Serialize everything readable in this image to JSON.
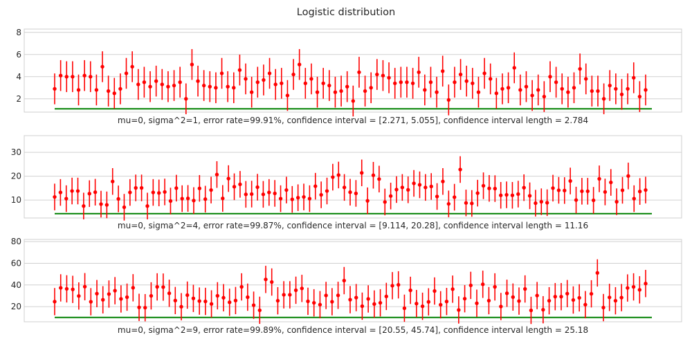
{
  "colors": {
    "errorbar": "#ff0000",
    "line": "#008000",
    "grid": "#d0d0d0",
    "frame": "#cfcfcf"
  },
  "chart_data": {
    "title": "Logistic distribution",
    "grid": true,
    "panels": [
      {
        "type": "scatter",
        "xlabel": "mu=0, sigma^2=1, error rate=99.91%, confidence interval = [2.271, 5.055], confidence interval length = 2.784",
        "ylim": [
          0.8,
          8.3
        ],
        "yticks": [
          2,
          4,
          6,
          8
        ],
        "true_mean": 1.1,
        "ci_half_width": 1.392,
        "points": [
          2.9,
          4.1,
          4.0,
          4.0,
          2.8,
          4.1,
          4.0,
          2.8,
          4.9,
          2.7,
          2.5,
          2.9,
          4.3,
          4.9,
          3.3,
          3.5,
          3.1,
          3.6,
          3.3,
          3.1,
          3.2,
          3.5,
          2.0,
          5.1,
          3.6,
          3.2,
          3.1,
          3.0,
          4.3,
          3.1,
          3.0,
          4.6,
          3.8,
          2.6,
          3.5,
          3.7,
          4.3,
          3.3,
          3.4,
          2.3,
          4.2,
          5.1,
          3.4,
          3.8,
          2.6,
          3.4,
          3.2,
          2.6,
          2.7,
          3.1,
          1.8,
          4.4,
          2.7,
          3.0,
          4.2,
          4.1,
          3.9,
          3.4,
          3.5,
          3.5,
          3.4,
          4.4,
          2.8,
          3.5,
          2.6,
          4.5,
          1.9,
          3.5,
          4.2,
          3.6,
          3.4,
          2.6,
          4.3,
          3.8,
          2.5,
          2.9,
          3.0,
          4.8,
          2.8,
          3.1,
          2.3,
          2.8,
          2.2,
          4.0,
          3.5,
          2.9,
          2.6,
          3.0,
          4.7,
          3.8,
          2.7,
          2.7,
          2.0,
          3.2,
          2.9,
          2.4,
          2.9,
          3.9,
          2.2,
          2.8
        ]
      },
      {
        "type": "scatter",
        "xlabel": "mu=0, sigma^2=4, error rate=99.87%, confidence interval = [9.114, 20.28], confidence interval length = 11.16",
        "ylim": [
          2.5,
          37
        ],
        "yticks": [
          10,
          20,
          30
        ],
        "true_mean": 4.3,
        "ci_half_width": 5.58,
        "points": [
          11.3,
          13.2,
          10.6,
          13.8,
          13.8,
          7.5,
          12.7,
          13.3,
          8.3,
          8.0,
          17.8,
          10.5,
          7.0,
          13.2,
          15.1,
          15.1,
          7.5,
          13.2,
          13.0,
          13.4,
          9.6,
          15.0,
          10.6,
          10.7,
          9.8,
          14.9,
          10.4,
          14.2,
          20.7,
          10.7,
          19.0,
          15.6,
          16.6,
          12.4,
          12.5,
          15.4,
          12.4,
          13.2,
          12.8,
          10.6,
          14.2,
          10.3,
          11.0,
          11.3,
          10.6,
          15.8,
          12.2,
          13.8,
          19.6,
          20.5,
          15.3,
          13.3,
          12.8,
          21.4,
          9.7,
          20.4,
          18.8,
          9.2,
          11.7,
          14.4,
          15.3,
          14.3,
          17.0,
          16.4,
          15.3,
          15.7,
          11.5,
          17.8,
          8.4,
          11.2,
          22.8,
          8.8,
          8.6,
          12.9,
          16.0,
          14.9,
          14.8,
          12.0,
          12.2,
          12.0,
          12.5,
          15.2,
          11.8,
          8.7,
          9.3,
          8.9,
          15.0,
          14.1,
          14.0,
          18.0,
          10.0,
          13.7,
          13.7,
          9.9,
          18.9,
          13.4,
          17.4,
          9.3,
          14.1,
          20.1,
          10.6,
          13.6,
          14.2
        ]
      },
      {
        "type": "scatter",
        "xlabel": "mu=0, sigma^2=9, error rate=99.89%, confidence interval = [20.55, 45.74], confidence interval length = 25.18",
        "ylim": [
          6,
          82
        ],
        "yticks": [
          20,
          40,
          60,
          80
        ],
        "true_mean": 10,
        "ci_half_width": 12.59,
        "points": [
          24.6,
          37.3,
          36.4,
          35.9,
          29.8,
          38.4,
          24.5,
          32.0,
          26.3,
          31.6,
          34.7,
          27.1,
          28.7,
          37.4,
          19.3,
          19.0,
          29.9,
          38.2,
          38.0,
          32.3,
          25.6,
          19.9,
          30.6,
          27.6,
          25.1,
          24.8,
          22.5,
          30.0,
          28.2,
          24.0,
          25.6,
          38.2,
          28.7,
          21.3,
          16.6,
          45.1,
          42.7,
          25.4,
          30.9,
          30.9,
          35.1,
          36.8,
          24.9,
          23.5,
          21.8,
          30.3,
          24.5,
          30.4,
          44.0,
          26.4,
          28.3,
          20.4,
          27.1,
          22.4,
          23.5,
          29.4,
          39.3,
          40.1,
          18.5,
          35.0,
          22.8,
          20.3,
          24.4,
          34.4,
          21.7,
          24.7,
          36.1,
          16.9,
          27.3,
          39.6,
          23.1,
          40.6,
          25.5,
          38.2,
          20.1,
          32.3,
          28.8,
          25.1,
          36.3,
          16.5,
          30.2,
          17.1,
          25.4,
          29.2,
          29.2,
          32.0,
          26.1,
          28.1,
          21.8,
          31.8,
          51.1,
          19.1,
          28.5,
          25.4,
          28.3,
          37.2,
          38.2,
          35.5,
          41.3
        ]
      }
    ]
  }
}
